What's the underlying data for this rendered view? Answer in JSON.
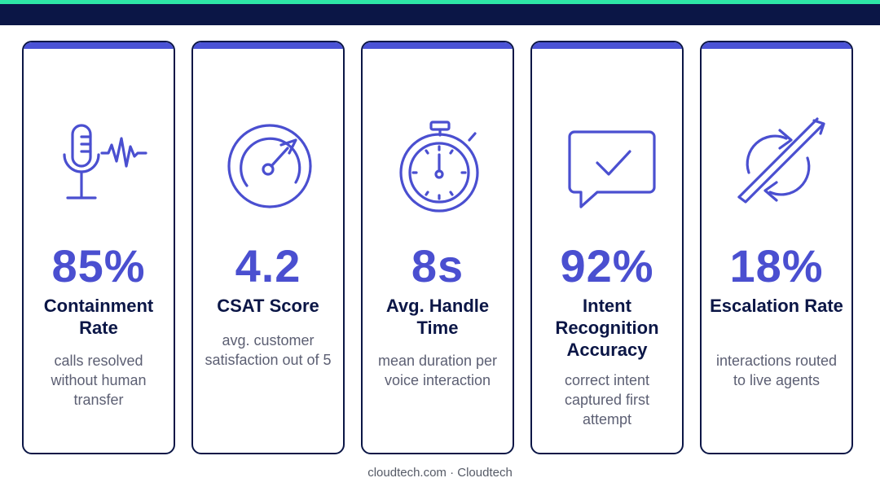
{
  "colors": {
    "navy": "#0b1646",
    "accent_green": "#2ee6a6",
    "indigo": "#4a4fd0",
    "card_cap": "#4a52d6",
    "text_gray": "#5c5f73"
  },
  "cards": [
    {
      "icon": "microphone-waveform-icon",
      "value": "85%",
      "title": "Containment Rate",
      "description": "calls resolved without human transfer"
    },
    {
      "icon": "gauge-icon",
      "value": "4.2",
      "title": "CSAT Score",
      "description": "avg. customer satisfaction out of 5"
    },
    {
      "icon": "stopwatch-icon",
      "value": "8s",
      "title": "Avg. Handle Time",
      "description": "mean duration per voice interaction"
    },
    {
      "icon": "chat-check-icon",
      "value": "92%",
      "title": "Intent Recognition Accuracy",
      "description": "correct intent captured first attempt"
    },
    {
      "icon": "escalation-arrows-icon",
      "value": "18%",
      "title": "Escalation Rate",
      "description": "interactions routed to live agents"
    }
  ],
  "footer": "cloudtech.com · Cloudtech"
}
